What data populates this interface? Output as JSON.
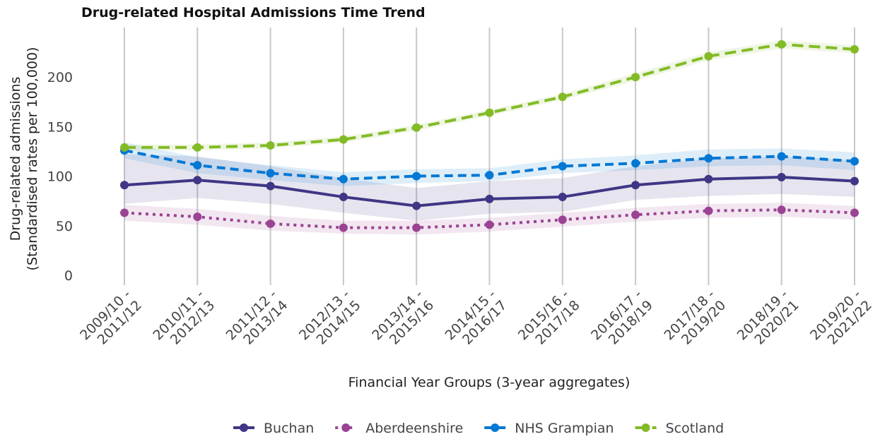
{
  "chart_data": {
    "type": "line",
    "title": "Drug-related Hospital Admissions Time Trend",
    "y_label": [
      "Drug-related admissions",
      "(Standardised rates per 100,000)"
    ],
    "x_label": "Financial Year Groups (3-year aggregates)",
    "categories": [
      [
        "2009/10 -",
        "2011/12"
      ],
      [
        "2010/11 -",
        "2012/13"
      ],
      [
        "2011/12 -",
        "2013/14"
      ],
      [
        "2012/13 -",
        "2014/15"
      ],
      [
        "2013/14 -",
        "2015/16"
      ],
      [
        "2014/15 -",
        "2016/17"
      ],
      [
        "2015/16 -",
        "2017/18"
      ],
      [
        "2016/17 -",
        "2018/19"
      ],
      [
        "2017/18 -",
        "2019/20"
      ],
      [
        "2018/19 -",
        "2020/21"
      ],
      [
        "2019/20 -",
        "2021/22"
      ]
    ],
    "ylim": [
      -10,
      250
    ],
    "yticks": [
      0,
      50,
      100,
      150,
      200
    ],
    "grid": "x",
    "legend": "bottom",
    "series": [
      {
        "name": "Buchan",
        "color": "#3f3685",
        "line_style": "solid",
        "values": [
          91,
          96,
          90,
          79,
          70,
          77,
          79,
          91,
          97,
          99,
          95
        ],
        "lower": [
          72,
          78,
          72,
          63,
          55,
          62,
          64,
          76,
          80,
          82,
          79
        ],
        "upper": [
          122,
          120,
          110,
          98,
          88,
          95,
          98,
          110,
          118,
          120,
          116
        ]
      },
      {
        "name": "Aberdeenshire",
        "color": "#9b4393",
        "line_style": "dotted",
        "values": [
          63,
          59,
          52,
          48,
          48,
          51,
          56,
          61,
          65,
          66,
          63
        ],
        "lower": [
          55,
          51,
          45,
          42,
          41,
          44,
          49,
          54,
          58,
          59,
          56
        ],
        "upper": [
          71,
          67,
          60,
          55,
          55,
          58,
          63,
          68,
          72,
          73,
          70
        ]
      },
      {
        "name": "NHS Grampian",
        "color": "#0078d4",
        "line_style": "dashed",
        "values": [
          126,
          111,
          103,
          97,
          100,
          101,
          110,
          113,
          118,
          120,
          115
        ],
        "lower": [
          118,
          103,
          96,
          90,
          93,
          95,
          103,
          106,
          110,
          111,
          106
        ],
        "upper": [
          134,
          119,
          111,
          104,
          107,
          108,
          117,
          121,
          127,
          128,
          124
        ]
      },
      {
        "name": "Scotland",
        "color": "#83bb26",
        "line_style": "longdash",
        "values": [
          129,
          129,
          131,
          137,
          149,
          164,
          180,
          200,
          221,
          233,
          228
        ],
        "lower": [
          126,
          126,
          128,
          134,
          146,
          161,
          177,
          196,
          217,
          229,
          224
        ],
        "upper": [
          132,
          132,
          134,
          140,
          152,
          167,
          183,
          204,
          225,
          237,
          232
        ]
      }
    ]
  }
}
